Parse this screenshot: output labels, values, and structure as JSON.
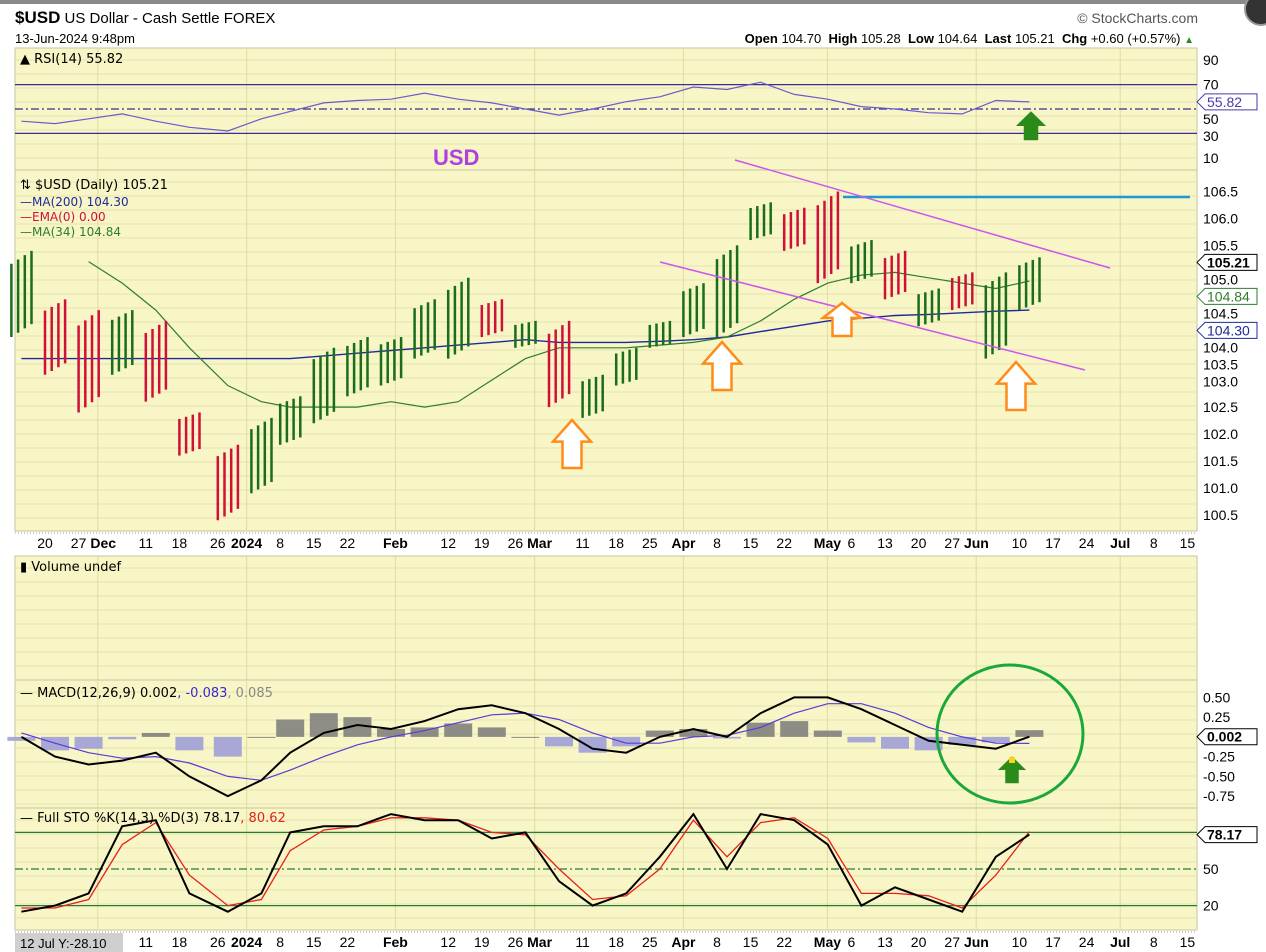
{
  "header": {
    "symbol": "$USD",
    "name": "US Dollar - Cash Settle",
    "exchange": "FOREX",
    "datetime": "13-Jun-2024 9:48pm",
    "copyright": "© StockCharts.com",
    "open_label": "Open",
    "open": "104.70",
    "high_label": "High",
    "high": "105.28",
    "low_label": "Low",
    "low": "104.64",
    "last_label": "Last",
    "last": "105.21",
    "chg_label": "Chg",
    "chg": "+0.60 (+0.57%)",
    "chg_direction": "up"
  },
  "colors": {
    "panel_bg": "#f8f6c6",
    "up": "#1a6e1a",
    "down": "#d0103a",
    "ma200": "#1f2a9a",
    "ma34": "#2e7d2e",
    "ema": "#d0103a",
    "rsi": "#6a5acd",
    "channel": "#cc55ee",
    "resistance": "#1a9ad6",
    "arrow_orange": "#ff8c1a",
    "arrow_green": "#2a8a1a",
    "circle": "#1aa83a"
  },
  "annotations": {
    "usd_label": "USD"
  },
  "x_axis": {
    "ticks": [
      {
        "date": "2023-11-20",
        "label": "20"
      },
      {
        "date": "2023-11-27",
        "label": "27"
      },
      {
        "date": "2023-12-01",
        "label": "Dec",
        "bold": true
      },
      {
        "date": "2023-12-11",
        "label": "11"
      },
      {
        "date": "2023-12-18",
        "label": "18"
      },
      {
        "date": "2023-12-26",
        "label": "26"
      },
      {
        "date": "2024-01-01",
        "label": "2024",
        "bold": true
      },
      {
        "date": "2024-01-08",
        "label": "8"
      },
      {
        "date": "2024-01-15",
        "label": "15"
      },
      {
        "date": "2024-01-22",
        "label": "22"
      },
      {
        "date": "2024-02-01",
        "label": "Feb",
        "bold": true
      },
      {
        "date": "2024-02-12",
        "label": "12"
      },
      {
        "date": "2024-02-19",
        "label": "19"
      },
      {
        "date": "2024-02-26",
        "label": "26"
      },
      {
        "date": "2024-03-01",
        "label": "Mar",
        "bold": true
      },
      {
        "date": "2024-03-11",
        "label": "11"
      },
      {
        "date": "2024-03-18",
        "label": "18"
      },
      {
        "date": "2024-03-25",
        "label": "25"
      },
      {
        "date": "2024-04-01",
        "label": "Apr",
        "bold": true
      },
      {
        "date": "2024-04-08",
        "label": "8"
      },
      {
        "date": "2024-04-15",
        "label": "15"
      },
      {
        "date": "2024-04-22",
        "label": "22"
      },
      {
        "date": "2024-05-01",
        "label": "May",
        "bold": true
      },
      {
        "date": "2024-05-06",
        "label": "6"
      },
      {
        "date": "2024-05-13",
        "label": "13"
      },
      {
        "date": "2024-05-20",
        "label": "20"
      },
      {
        "date": "2024-05-27",
        "label": "27"
      },
      {
        "date": "2024-06-01",
        "label": "Jun",
        "bold": true
      },
      {
        "date": "2024-06-10",
        "label": "10"
      },
      {
        "date": "2024-06-17",
        "label": "17"
      },
      {
        "date": "2024-06-24",
        "label": "24"
      },
      {
        "date": "2024-07-01",
        "label": "Jul",
        "bold": true
      },
      {
        "date": "2024-07-08",
        "label": "8"
      },
      {
        "date": "2024-07-15",
        "label": "15"
      }
    ],
    "cursor_readout": "12 Jul Y:-28.10"
  },
  "chart_data": {
    "type": "line",
    "weeks": [
      "2023-11-13",
      "2023-11-20",
      "2023-11-27",
      "2023-12-04",
      "2023-12-11",
      "2023-12-18",
      "2023-12-26",
      "2024-01-02",
      "2024-01-08",
      "2024-01-15",
      "2024-01-22",
      "2024-01-29",
      "2024-02-05",
      "2024-02-12",
      "2024-02-19",
      "2024-02-26",
      "2024-03-04",
      "2024-03-11",
      "2024-03-18",
      "2024-03-25",
      "2024-04-01",
      "2024-04-08",
      "2024-04-15",
      "2024-04-22",
      "2024-04-29",
      "2024-05-06",
      "2024-05-13",
      "2024-05-20",
      "2024-05-27",
      "2024-06-03",
      "2024-06-10"
    ],
    "rsi": {
      "title": "RSI(14) 55.82",
      "last": "55.82",
      "yticks": [
        90,
        70,
        50,
        30,
        10
      ],
      "ylim": [
        0,
        100
      ],
      "levels": [
        70,
        50,
        30
      ],
      "values": [
        40,
        38,
        42,
        46,
        40,
        35,
        32,
        42,
        48,
        55,
        57,
        58,
        63,
        58,
        55,
        50,
        45,
        50,
        56,
        60,
        68,
        66,
        72,
        62,
        58,
        52,
        50,
        47,
        46,
        57,
        55.82
      ]
    },
    "price": {
      "title": "$USD (Daily) 105.21",
      "legend": [
        {
          "label": "MA(200) 104.30",
          "color": "#1f2a9a"
        },
        {
          "label": "EMA(0) 0.00",
          "color": "#d0103a"
        },
        {
          "label": "MA(34) 104.84",
          "color": "#2e7d2e"
        }
      ],
      "yticks": [
        106.5,
        106.0,
        105.5,
        105.0,
        104.5,
        104.0,
        103.5,
        103.0,
        102.5,
        102.0,
        101.5,
        101.0,
        100.5
      ],
      "ylim": [
        100.2,
        106.9
      ],
      "last_labels": [
        {
          "value": 105.21,
          "text": "105.21",
          "color": "#000"
        },
        {
          "value": 104.84,
          "text": "104.84",
          "color": "#2e7d2e"
        },
        {
          "value": 104.3,
          "text": "104.30",
          "color": "#1f2a9a"
        }
      ],
      "high": [
        105.4,
        104.5,
        104.3,
        104.3,
        104.1,
        102.4,
        101.8,
        102.3,
        102.7,
        103.6,
        103.8,
        103.8,
        104.5,
        104.9,
        104.5,
        104.1,
        104.1,
        103.1,
        103.6,
        104.1,
        104.8,
        105.5,
        106.3,
        106.2,
        106.5,
        105.6,
        105.4,
        104.7,
        105.0,
        105.0,
        105.28
      ],
      "low": [
        103.8,
        103.1,
        102.4,
        103.1,
        102.6,
        101.6,
        100.4,
        100.9,
        101.8,
        102.2,
        102.7,
        102.9,
        103.4,
        103.4,
        103.8,
        103.6,
        102.5,
        102.3,
        102.9,
        103.6,
        103.8,
        103.8,
        105.6,
        105.4,
        104.8,
        104.8,
        104.5,
        104.0,
        104.3,
        103.4,
        104.3
      ],
      "close": [
        104.0,
        103.6,
        103.3,
        103.9,
        102.7,
        101.9,
        101.2,
        102.2,
        102.4,
        103.2,
        103.4,
        103.5,
        104.1,
        104.3,
        103.9,
        103.9,
        102.7,
        102.8,
        103.5,
        104.0,
        104.3,
        105.4,
        106.0,
        105.8,
        105.0,
        105.3,
        104.5,
        104.7,
        104.6,
        104.9,
        105.21
      ],
      "ma200": [
        103.4,
        103.4,
        103.4,
        103.4,
        103.4,
        103.4,
        103.4,
        103.4,
        103.4,
        103.45,
        103.5,
        103.55,
        103.6,
        103.65,
        103.7,
        103.75,
        103.7,
        103.7,
        103.7,
        103.72,
        103.75,
        103.8,
        103.9,
        104.0,
        104.1,
        104.15,
        104.2,
        104.22,
        104.25,
        104.28,
        104.3
      ],
      "ma34": [
        null,
        null,
        105.2,
        104.8,
        104.3,
        103.6,
        102.9,
        102.6,
        102.5,
        102.5,
        102.5,
        102.6,
        102.5,
        102.6,
        103.0,
        103.4,
        103.6,
        103.6,
        103.6,
        103.65,
        103.7,
        103.8,
        104.1,
        104.5,
        104.8,
        104.95,
        105.0,
        104.9,
        104.8,
        104.7,
        104.84
      ],
      "resistance_level": 106.4
    },
    "volume": {
      "title": "Volume undef"
    },
    "macd": {
      "title_prefix": "MACD(12,26,9) 0.002",
      "signal_text": ", -0.083",
      "hist_text": ", 0.085",
      "yticks": [
        0.5,
        0.25,
        -0.25,
        -0.5,
        -0.75
      ],
      "ylim": [
        -0.9,
        0.72
      ],
      "last": "0.002",
      "macd": [
        0.0,
        -0.25,
        -0.35,
        -0.3,
        -0.2,
        -0.5,
        -0.75,
        -0.55,
        -0.2,
        0.05,
        0.15,
        0.1,
        0.2,
        0.35,
        0.4,
        0.3,
        0.1,
        -0.15,
        -0.2,
        0.0,
        0.1,
        0.0,
        0.3,
        0.5,
        0.5,
        0.35,
        0.15,
        -0.05,
        -0.1,
        -0.15,
        0.002
      ],
      "signal": [
        0.05,
        -0.08,
        -0.2,
        -0.27,
        -0.25,
        -0.33,
        -0.5,
        -0.55,
        -0.42,
        -0.25,
        -0.1,
        0.0,
        0.08,
        0.18,
        0.28,
        0.3,
        0.22,
        0.05,
        -0.08,
        -0.08,
        0.0,
        0.02,
        0.12,
        0.3,
        0.42,
        0.42,
        0.3,
        0.12,
        0.0,
        -0.08,
        -0.083
      ]
    },
    "sto": {
      "title_prefix": "Full STO %K(14,3) %D(3) 78.17",
      "d_text": ", 80.62",
      "yticks": [
        50,
        20
      ],
      "levels": [
        80,
        50,
        20
      ],
      "ylim": [
        0,
        100
      ],
      "last": "78.17",
      "k": [
        15,
        20,
        30,
        85,
        90,
        30,
        15,
        30,
        80,
        85,
        85,
        95,
        90,
        90,
        75,
        80,
        40,
        20,
        30,
        60,
        95,
        50,
        95,
        90,
        70,
        20,
        35,
        25,
        15,
        60,
        78.17
      ],
      "d": [
        18,
        18,
        25,
        70,
        88,
        45,
        20,
        25,
        65,
        82,
        85,
        92,
        92,
        90,
        80,
        78,
        50,
        25,
        28,
        50,
        90,
        60,
        88,
        92,
        75,
        30,
        30,
        28,
        18,
        45,
        80.62
      ]
    }
  }
}
